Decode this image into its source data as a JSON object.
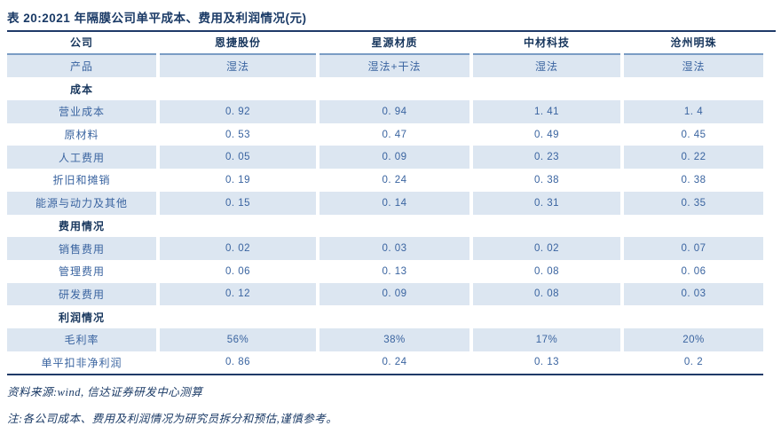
{
  "title": "表 20:2021 年隔膜公司单平成本、费用及利润情况(元)",
  "colors": {
    "navy": "#17365d",
    "steel_blue": "#3a64a0",
    "row_shade": "#dce6f1",
    "header_border": "#7a9cc4"
  },
  "rows": [
    {
      "type": "header",
      "cells": [
        "公司",
        "恩捷股份",
        "星源材质",
        "中材科技",
        "沧州明珠"
      ]
    },
    {
      "type": "product",
      "cells": [
        "产品",
        "湿法",
        "湿法+干法",
        "湿法",
        "湿法"
      ]
    },
    {
      "type": "section",
      "cells": [
        "成本",
        "",
        "",
        "",
        ""
      ]
    },
    {
      "type": "data",
      "cells": [
        "营业成本",
        "0. 92",
        "0. 94",
        "1. 41",
        "1. 4"
      ]
    },
    {
      "type": "data",
      "cells": [
        "原材料",
        "0. 53",
        "0. 47",
        "0. 49",
        "0. 45"
      ]
    },
    {
      "type": "data",
      "cells": [
        "人工费用",
        "0. 05",
        "0. 09",
        "0. 23",
        "0. 22"
      ]
    },
    {
      "type": "data",
      "cells": [
        "折旧和摊销",
        "0. 19",
        "0. 24",
        "0. 38",
        "0. 38"
      ]
    },
    {
      "type": "data",
      "cells": [
        "能源与动力及其他",
        "0. 15",
        "0. 14",
        "0. 31",
        "0. 35"
      ]
    },
    {
      "type": "section",
      "cells": [
        "费用情况",
        "",
        "",
        "",
        ""
      ]
    },
    {
      "type": "data",
      "cells": [
        "销售费用",
        "0. 02",
        "0. 03",
        "0. 02",
        "0. 07"
      ]
    },
    {
      "type": "data",
      "cells": [
        "管理费用",
        "0. 06",
        "0. 13",
        "0. 08",
        "0. 06"
      ]
    },
    {
      "type": "data",
      "cells": [
        "研发费用",
        "0. 12",
        "0. 09",
        "0. 08",
        "0. 03"
      ]
    },
    {
      "type": "section",
      "cells": [
        "利润情况",
        "",
        "",
        "",
        ""
      ]
    },
    {
      "type": "data",
      "cells": [
        "毛利率",
        "56%",
        "38%",
        "17%",
        "20%"
      ]
    },
    {
      "type": "data",
      "cells": [
        "单平扣非净利润",
        "0. 86",
        "0. 24",
        "0. 13",
        "0. 2"
      ]
    }
  ],
  "footer": {
    "source": "资料来源:wind, 信达证券研发中心测算",
    "note": "注:各公司成本、费用及利润情况为研究员拆分和预估,谨慎参考。"
  }
}
